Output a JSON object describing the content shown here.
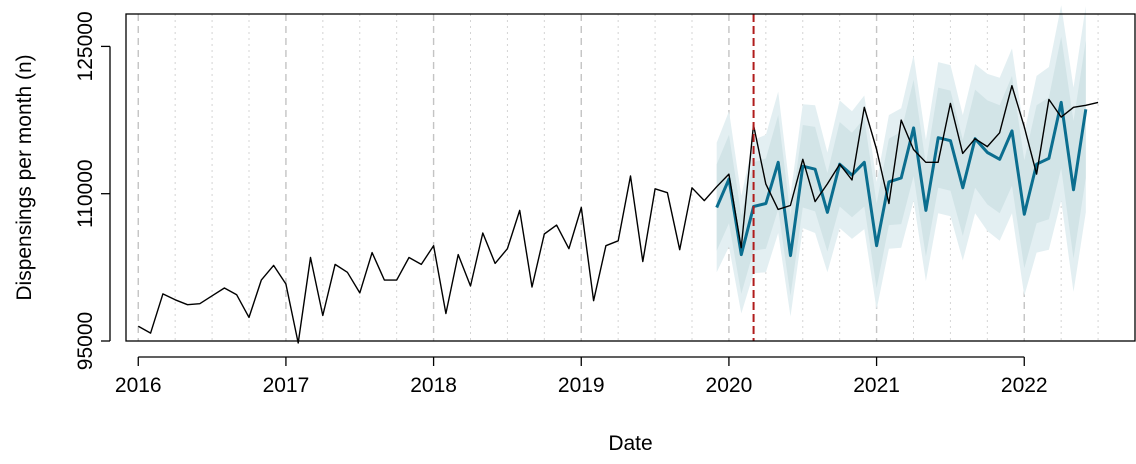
{
  "chart_data": {
    "type": "line",
    "title": "",
    "xlabel": "Date",
    "ylabel": "Dispensings per month (n)",
    "xlim": [
      2015.917,
      2022.75
    ],
    "ylim": [
      95000,
      128300
    ],
    "x_ticks": [
      2016,
      2017,
      2018,
      2019,
      2020,
      2021,
      2022
    ],
    "x_tick_labels": [
      "2016",
      "2017",
      "2018",
      "2019",
      "2020",
      "2021",
      "2022"
    ],
    "y_ticks": [
      95000,
      110000,
      125000
    ],
    "y_tick_labels": [
      "95000",
      "110000",
      "125000"
    ],
    "grid": "vertical: dashed at years, dotted at quarters",
    "intervention_date": 2020.167,
    "colors": {
      "observed": "#000000",
      "predicted": "#0b6e8f",
      "band_outer": "#e3eff2",
      "band_inner": "#d2e4e7",
      "intervention": "#b01c1c",
      "year_grid": "#c4c4c4",
      "quarter_grid": "#d4d4d4"
    },
    "series": [
      {
        "x_start": 2016.0,
        "x_step_months": 1,
        "values": [
          96500,
          95800,
          99800,
          99200,
          98700,
          98800,
          99600,
          100400,
          99700,
          97400,
          101200,
          102700,
          100800,
          94800,
          103500,
          97600,
          102800,
          102000,
          99900,
          104000,
          101200,
          101200,
          103500,
          102800,
          104700,
          97800,
          103800,
          100600,
          106000,
          102900,
          104400,
          108300,
          100500,
          105900,
          106800,
          104400,
          108600,
          99100,
          104700,
          105200,
          111800,
          103100,
          110500,
          110100,
          104300,
          110600,
          109300,
          110700,
          112000,
          104500,
          117000,
          111000,
          108400,
          108800,
          113500,
          109200,
          111000,
          113000,
          111400,
          118800,
          114500,
          109000,
          117500,
          114500,
          113200,
          113200,
          119200,
          114100,
          115600,
          114800,
          116200,
          121000,
          116800,
          112000,
          119600,
          117800,
          118800,
          119000,
          119300
        ]
      },
      {
        "x_start": 2019.917,
        "x_step_months": 1,
        "values": [
          108600,
          111500,
          103800,
          108700,
          109000,
          113200,
          103700,
          112800,
          112500,
          108100,
          113000,
          111900,
          113200,
          104700,
          111200,
          111600,
          116700,
          108300,
          115700,
          115400,
          110600,
          115600,
          114200,
          113500,
          116400,
          107900,
          113000,
          113600,
          119300,
          110400,
          118600
        ],
        "lower_80": [
          104200,
          107000,
          99800,
          104200,
          104400,
          108400,
          99600,
          108600,
          108200,
          104100,
          108700,
          107600,
          108700,
          100400,
          106800,
          106900,
          111800,
          103600,
          110600,
          110300,
          105700,
          110600,
          108900,
          108000,
          110800,
          102400,
          107000,
          107400,
          112600,
          103400,
          111600
        ],
        "upper_80": [
          113000,
          116000,
          107800,
          113200,
          113600,
          118000,
          107800,
          117000,
          116800,
          112100,
          117300,
          116200,
          117700,
          109000,
          115600,
          116300,
          121600,
          113000,
          120800,
          120500,
          115500,
          120600,
          119500,
          119000,
          122000,
          113400,
          119000,
          119800,
          126000,
          117400,
          125600
        ],
        "lower_95": [
          102000,
          104600,
          97800,
          101900,
          102000,
          106000,
          97500,
          106500,
          106000,
          102000,
          106500,
          105400,
          106400,
          98200,
          104400,
          104500,
          109300,
          101100,
          108000,
          107700,
          103200,
          108000,
          106200,
          105200,
          108000,
          99600,
          104000,
          104300,
          109300,
          100000,
          108100
        ],
        "upper_95": [
          115200,
          118400,
          109800,
          115500,
          116000,
          120400,
          109900,
          119100,
          119000,
          114200,
          119500,
          118400,
          120000,
          111200,
          118000,
          118700,
          124100,
          115500,
          123400,
          123100,
          118000,
          123200,
          122200,
          121800,
          124800,
          116200,
          122000,
          122900,
          129200,
          120800,
          129100
        ]
      }
    ]
  }
}
